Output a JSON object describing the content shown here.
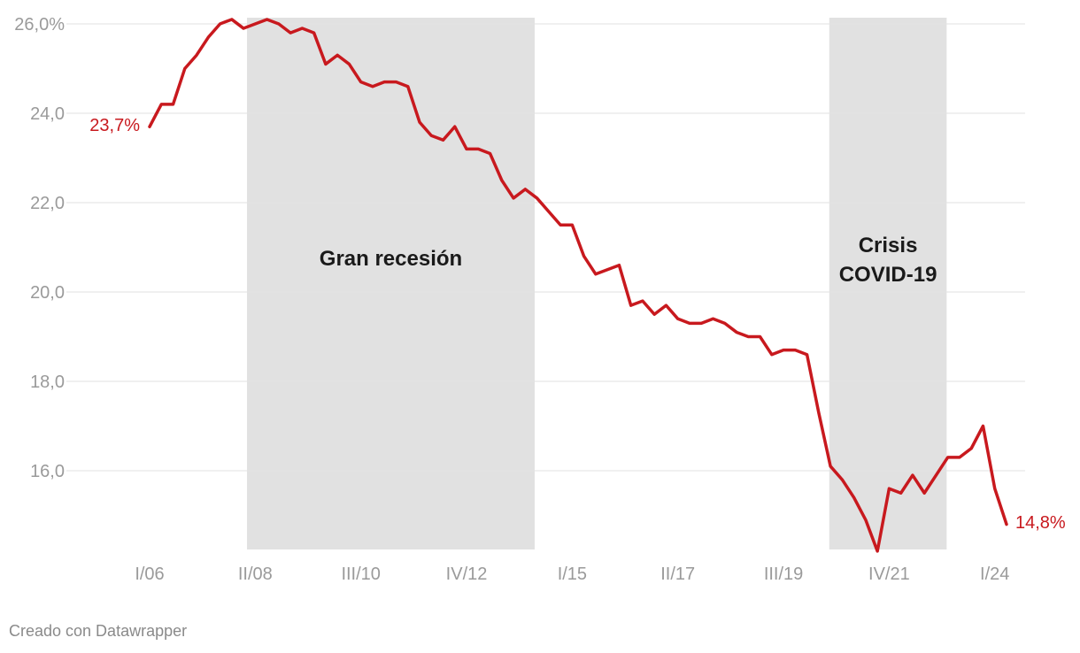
{
  "chart_data": {
    "type": "line",
    "title": "",
    "xlabel": "",
    "ylabel": "",
    "ylim": [
      14.2,
      26.2
    ],
    "y_ticks": [
      {
        "value": 26,
        "label": "26,0%"
      },
      {
        "value": 24,
        "label": "24,0"
      },
      {
        "value": 22,
        "label": "22,0"
      },
      {
        "value": 20,
        "label": "20,0"
      },
      {
        "value": 18,
        "label": "18,0"
      },
      {
        "value": 16,
        "label": "16,0"
      }
    ],
    "x_ticks": [
      {
        "index": 0,
        "label": "I/06"
      },
      {
        "index": 9,
        "label": "II/08"
      },
      {
        "index": 18,
        "label": "III/10"
      },
      {
        "index": 27,
        "label": "IV/12"
      },
      {
        "index": 36,
        "label": "I/15"
      },
      {
        "index": 45,
        "label": "II/17"
      },
      {
        "index": 54,
        "label": "III/19"
      },
      {
        "index": 63,
        "label": "IV/21"
      },
      {
        "index": 72,
        "label": "I/24"
      }
    ],
    "bands": [
      {
        "from": 8.3,
        "to": 32.8,
        "label": [
          "Gran recesión"
        ]
      },
      {
        "from": 57.9,
        "to": 67.9,
        "label": [
          "Crisis",
          "COVID-19"
        ]
      }
    ],
    "grid": true,
    "color": "#c8191e",
    "series": [
      {
        "name": "",
        "values": [
          23.7,
          24.2,
          24.2,
          25.0,
          25.3,
          25.7,
          26.0,
          26.1,
          25.9,
          26.0,
          26.1,
          26.0,
          25.8,
          25.9,
          25.8,
          25.1,
          25.3,
          25.1,
          24.7,
          24.6,
          24.7,
          24.7,
          24.6,
          23.8,
          23.5,
          23.4,
          23.7,
          23.2,
          23.2,
          23.1,
          22.5,
          22.1,
          22.3,
          22.1,
          21.8,
          21.5,
          21.5,
          20.8,
          20.4,
          20.5,
          20.6,
          19.7,
          19.8,
          19.5,
          19.7,
          19.4,
          19.3,
          19.3,
          19.4,
          19.3,
          19.1,
          19.0,
          19.0,
          18.6,
          18.7,
          18.7,
          18.6,
          17.3,
          16.1,
          15.8,
          15.4,
          14.9,
          14.2,
          15.6,
          15.5,
          15.9,
          15.5,
          15.9,
          16.3,
          16.3,
          16.5,
          17.0,
          15.6,
          14.8
        ]
      }
    ],
    "annotations": {
      "start_label": "23,7%",
      "end_label": "14,8%"
    }
  },
  "footer": {
    "credit": "Creado con Datawrapper"
  }
}
